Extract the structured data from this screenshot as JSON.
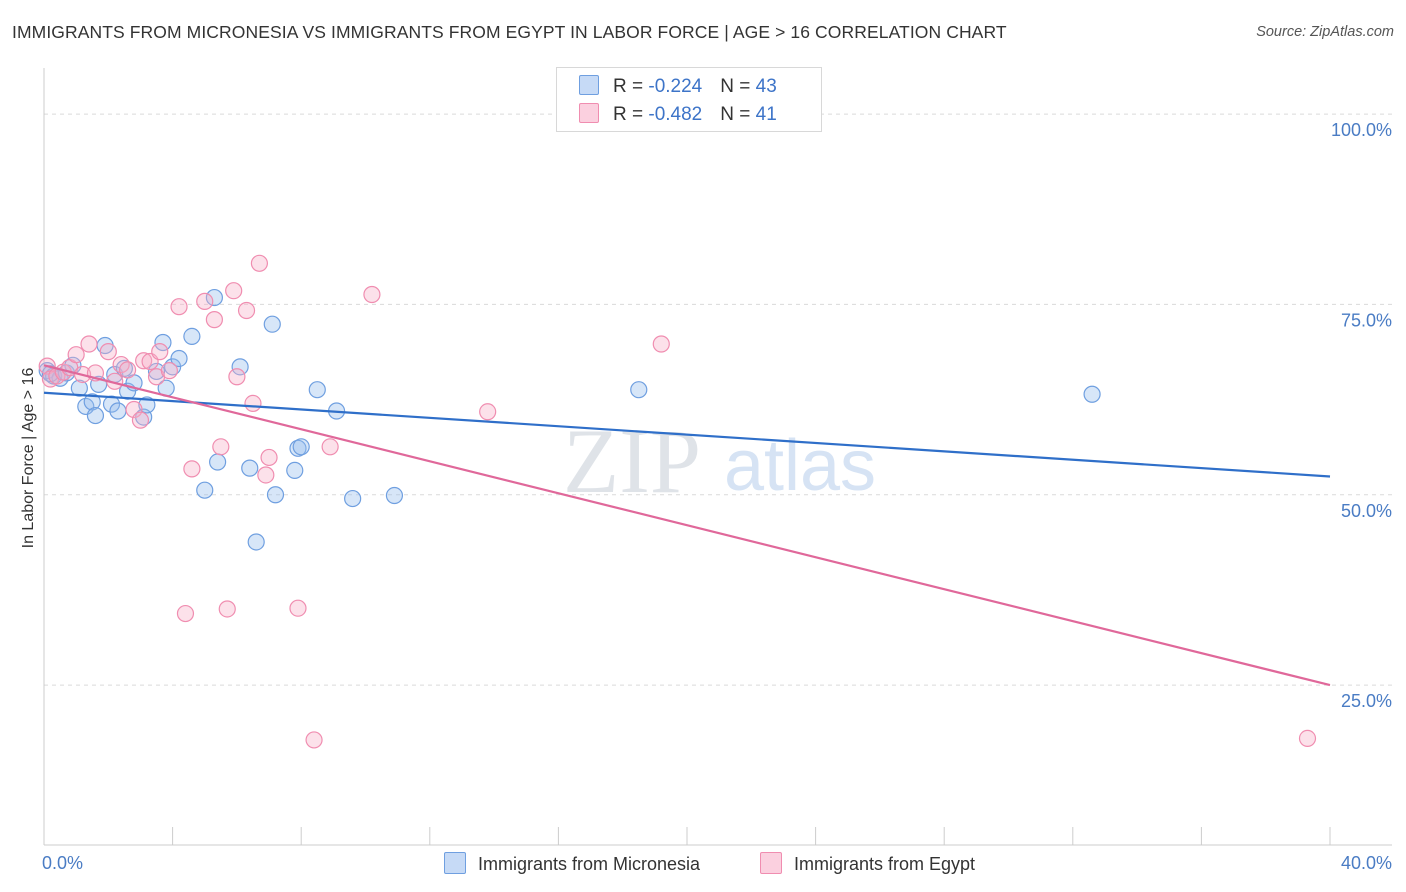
{
  "title": "IMMIGRANTS FROM MICRONESIA VS IMMIGRANTS FROM EGYPT IN LABOR FORCE | AGE > 16 CORRELATION CHART",
  "source": "Source: ZipAtlas.com",
  "watermark": {
    "zip": "ZIP",
    "atlas": "atlas"
  },
  "legend": {
    "rows": [
      {
        "r_label": "R = ",
        "r_value": "-0.224",
        "n_label": "N = ",
        "n_value": "43",
        "color": "#6f9fe0"
      },
      {
        "r_label": "R = ",
        "r_value": "-0.482",
        "n_label": "N = ",
        "n_value": "41",
        "color": "#f08db0"
      }
    ]
  },
  "chart_data": {
    "type": "scatter",
    "title": "IMMIGRANTS FROM MICRONESIA VS IMMIGRANTS FROM EGYPT IN LABOR FORCE | AGE > 16 CORRELATION CHART",
    "xlabel": "",
    "ylabel": "In Labor Force | Age > 16",
    "xlim": [
      0,
      40
    ],
    "ylim": [
      4,
      105
    ],
    "x_tick_labels": {
      "left": "0.0%",
      "right": "40.0%"
    },
    "y_ticks": [
      {
        "value": 100,
        "label": "100.0%"
      },
      {
        "value": 75,
        "label": "75.0%"
      },
      {
        "value": 50,
        "label": "50.0%"
      },
      {
        "value": 25,
        "label": "25.0%"
      }
    ],
    "grid": "horizontal dashed",
    "legend_placement": "bottom-center",
    "series": [
      {
        "name": "Immigrants from Micronesia",
        "color": "#6f9fe0",
        "trend": {
          "x": [
            0,
            40
          ],
          "y": [
            63.4,
            52.4
          ]
        },
        "points": [
          {
            "x": 0.1,
            "y": 66.3
          },
          {
            "x": 0.3,
            "y": 65.6
          },
          {
            "x": 0.5,
            "y": 65.3
          },
          {
            "x": 0.7,
            "y": 66.0
          },
          {
            "x": 0.9,
            "y": 67.0
          },
          {
            "x": 1.1,
            "y": 64.0
          },
          {
            "x": 1.3,
            "y": 61.6
          },
          {
            "x": 1.5,
            "y": 62.2
          },
          {
            "x": 1.6,
            "y": 60.4
          },
          {
            "x": 1.7,
            "y": 64.5
          },
          {
            "x": 1.9,
            "y": 69.6
          },
          {
            "x": 2.1,
            "y": 61.9
          },
          {
            "x": 2.2,
            "y": 65.8
          },
          {
            "x": 2.3,
            "y": 61.0
          },
          {
            "x": 2.5,
            "y": 66.6
          },
          {
            "x": 2.6,
            "y": 63.6
          },
          {
            "x": 2.8,
            "y": 64.7
          },
          {
            "x": 3.1,
            "y": 60.2
          },
          {
            "x": 3.2,
            "y": 61.8
          },
          {
            "x": 3.5,
            "y": 66.2
          },
          {
            "x": 3.7,
            "y": 70.0
          },
          {
            "x": 3.8,
            "y": 64.0
          },
          {
            "x": 4.0,
            "y": 66.8
          },
          {
            "x": 4.2,
            "y": 67.9
          },
          {
            "x": 4.6,
            "y": 70.8
          },
          {
            "x": 5.0,
            "y": 50.6
          },
          {
            "x": 5.3,
            "y": 75.9
          },
          {
            "x": 5.4,
            "y": 54.3
          },
          {
            "x": 6.1,
            "y": 66.8
          },
          {
            "x": 6.4,
            "y": 53.5
          },
          {
            "x": 6.6,
            "y": 43.8
          },
          {
            "x": 7.1,
            "y": 72.4
          },
          {
            "x": 7.2,
            "y": 50.0
          },
          {
            "x": 7.8,
            "y": 53.2
          },
          {
            "x": 7.9,
            "y": 56.1
          },
          {
            "x": 8.0,
            "y": 56.3
          },
          {
            "x": 8.5,
            "y": 63.8
          },
          {
            "x": 9.1,
            "y": 61.0
          },
          {
            "x": 9.6,
            "y": 49.5
          },
          {
            "x": 10.9,
            "y": 49.9
          },
          {
            "x": 18.5,
            "y": 63.8
          },
          {
            "x": 32.6,
            "y": 63.2
          },
          {
            "x": 0.2,
            "y": 65.9
          }
        ]
      },
      {
        "name": "Immigrants from Egypt",
        "color": "#f08db0",
        "trend": {
          "x": [
            0,
            40
          ],
          "y": [
            67.0,
            25.0
          ]
        },
        "points": [
          {
            "x": 0.1,
            "y": 66.9
          },
          {
            "x": 0.2,
            "y": 65.2
          },
          {
            "x": 0.4,
            "y": 65.6
          },
          {
            "x": 0.6,
            "y": 66.1
          },
          {
            "x": 0.8,
            "y": 66.7
          },
          {
            "x": 1.0,
            "y": 68.4
          },
          {
            "x": 1.2,
            "y": 65.8
          },
          {
            "x": 1.4,
            "y": 69.8
          },
          {
            "x": 1.6,
            "y": 66.0
          },
          {
            "x": 2.0,
            "y": 68.8
          },
          {
            "x": 2.2,
            "y": 64.9
          },
          {
            "x": 2.4,
            "y": 67.1
          },
          {
            "x": 2.6,
            "y": 66.4
          },
          {
            "x": 2.8,
            "y": 61.2
          },
          {
            "x": 3.0,
            "y": 59.8
          },
          {
            "x": 3.1,
            "y": 67.6
          },
          {
            "x": 3.3,
            "y": 67.5
          },
          {
            "x": 3.5,
            "y": 65.5
          },
          {
            "x": 3.6,
            "y": 68.8
          },
          {
            "x": 3.9,
            "y": 66.3
          },
          {
            "x": 4.2,
            "y": 74.7
          },
          {
            "x": 4.4,
            "y": 34.4
          },
          {
            "x": 4.6,
            "y": 53.4
          },
          {
            "x": 5.0,
            "y": 75.4
          },
          {
            "x": 5.3,
            "y": 73.0
          },
          {
            "x": 5.5,
            "y": 56.3
          },
          {
            "x": 5.7,
            "y": 35.0
          },
          {
            "x": 5.9,
            "y": 76.8
          },
          {
            "x": 6.0,
            "y": 65.5
          },
          {
            "x": 6.3,
            "y": 74.2
          },
          {
            "x": 6.5,
            "y": 62.0
          },
          {
            "x": 6.7,
            "y": 80.4
          },
          {
            "x": 6.9,
            "y": 52.6
          },
          {
            "x": 7.0,
            "y": 54.9
          },
          {
            "x": 7.9,
            "y": 35.1
          },
          {
            "x": 8.4,
            "y": 17.8
          },
          {
            "x": 8.9,
            "y": 56.3
          },
          {
            "x": 10.2,
            "y": 76.3
          },
          {
            "x": 13.8,
            "y": 60.9
          },
          {
            "x": 19.2,
            "y": 69.8
          },
          {
            "x": 39.3,
            "y": 18.0
          }
        ]
      }
    ]
  }
}
